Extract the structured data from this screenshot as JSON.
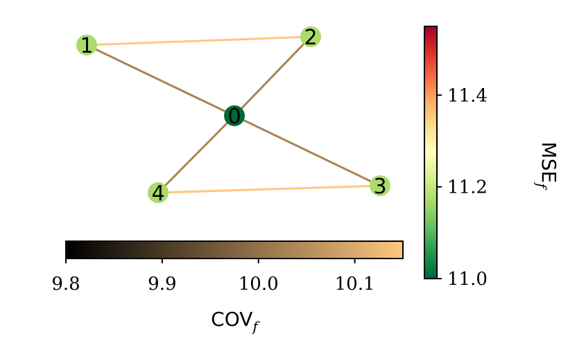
{
  "graph": {
    "nodes": [
      {
        "id": "0",
        "label": "0",
        "mse": 11.0
      },
      {
        "id": "1",
        "label": "1",
        "mse": 11.17
      },
      {
        "id": "2",
        "label": "2",
        "mse": 11.17
      },
      {
        "id": "3",
        "label": "3",
        "mse": 11.17
      },
      {
        "id": "4",
        "label": "4",
        "mse": 11.17
      }
    ],
    "edges": [
      {
        "source": "1",
        "target": "2",
        "cov": 10.15
      },
      {
        "source": "4",
        "target": "3",
        "cov": 10.15
      },
      {
        "source": "1",
        "target": "0",
        "cov": 10.03
      },
      {
        "source": "2",
        "target": "0",
        "cov": 10.03
      },
      {
        "source": "3",
        "target": "0",
        "cov": 10.03
      },
      {
        "source": "4",
        "target": "0",
        "cov": 10.03
      }
    ]
  },
  "colorbars": {
    "mse": {
      "label": "MSE",
      "label_sub": "f",
      "min": 11.0,
      "max": 11.55,
      "ticks": [
        "11.0",
        "11.2",
        "11.4"
      ],
      "colormap": "RdYlGn_r",
      "colors": [
        "#006837",
        "#1a9850",
        "#66bd63",
        "#a6d96a",
        "#d9ef8b",
        "#ffffbf",
        "#fee08b",
        "#fdae61",
        "#f46d43",
        "#d73027",
        "#a50026"
      ]
    },
    "cov": {
      "label": "COV",
      "label_sub": "f",
      "min": 9.8,
      "max": 10.15,
      "ticks": [
        "9.8",
        "9.9",
        "10.0",
        "10.1"
      ],
      "colormap": "copper",
      "colors": [
        "#000000",
        "#ffc77f"
      ]
    }
  }
}
